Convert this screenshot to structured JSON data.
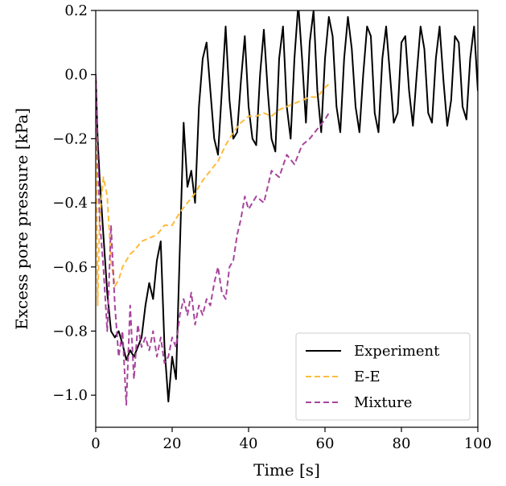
{
  "chart_data": {
    "type": "line",
    "title": "",
    "xlabel": "Time [s]",
    "ylabel": "Excess pore pressure [kPa]",
    "xlim": [
      0,
      100
    ],
    "ylim": [
      -1.1,
      0.2
    ],
    "xticks": [
      0,
      20,
      40,
      60,
      80,
      100
    ],
    "xtick_labels": [
      "0",
      "20",
      "40",
      "60",
      "80",
      "100"
    ],
    "yticks": [
      0.2,
      0.0,
      -0.2,
      -0.4,
      -0.6,
      -0.8,
      -1.0
    ],
    "ytick_labels": [
      "0.2",
      "0.0",
      "−0.2",
      "−0.4",
      "−0.6",
      "−0.8",
      "−1.0"
    ],
    "grid": false,
    "legend_position": "lower-right",
    "series": [
      {
        "name": "Experiment",
        "color": "#000000",
        "style": "solid",
        "x": [
          0,
          0.5,
          1,
          2,
          3,
          4,
          5,
          6,
          7,
          8,
          9,
          10,
          11,
          12,
          13,
          14,
          15,
          16,
          17,
          18,
          19,
          20,
          21,
          22,
          23,
          24,
          25,
          26,
          27,
          28,
          29,
          30,
          31,
          32,
          33,
          34,
          35,
          36,
          37,
          38,
          39,
          40,
          41,
          42,
          43,
          44,
          45,
          46,
          47,
          48,
          49,
          50,
          51,
          52,
          53,
          54,
          55,
          56,
          57,
          58,
          59,
          60,
          61,
          62,
          63,
          64,
          65,
          66,
          67,
          68,
          69,
          70,
          71,
          72,
          73,
          74,
          75,
          76,
          77,
          78,
          79,
          80,
          81,
          82,
          83,
          84,
          85,
          86,
          87,
          88,
          89,
          90,
          91,
          92,
          93,
          94,
          95,
          96,
          97,
          98,
          99,
          100
        ],
        "y": [
          0.0,
          -0.2,
          -0.32,
          -0.5,
          -0.68,
          -0.8,
          -0.82,
          -0.8,
          -0.84,
          -0.89,
          -0.86,
          -0.88,
          -0.85,
          -0.82,
          -0.72,
          -0.65,
          -0.7,
          -0.58,
          -0.52,
          -0.85,
          -1.02,
          -0.88,
          -0.95,
          -0.55,
          -0.15,
          -0.35,
          -0.3,
          -0.4,
          -0.1,
          0.05,
          0.1,
          -0.05,
          -0.2,
          -0.25,
          -0.05,
          0.15,
          -0.08,
          -0.2,
          -0.18,
          -0.02,
          0.12,
          -0.1,
          -0.2,
          -0.22,
          0.0,
          0.14,
          -0.05,
          -0.2,
          -0.24,
          0.05,
          0.15,
          -0.1,
          -0.2,
          0.05,
          0.22,
          0.05,
          -0.15,
          0.1,
          0.2,
          -0.05,
          -0.18,
          0.05,
          0.18,
          0.12,
          -0.1,
          -0.18,
          0.05,
          0.18,
          0.08,
          -0.1,
          -0.18,
          0.0,
          0.15,
          0.12,
          -0.12,
          -0.18,
          0.05,
          0.15,
          0.0,
          -0.15,
          -0.12,
          0.1,
          0.12,
          -0.05,
          -0.16,
          0.0,
          0.15,
          0.08,
          -0.12,
          -0.15,
          0.05,
          0.15,
          -0.02,
          -0.16,
          -0.08,
          0.12,
          0.1,
          -0.1,
          -0.14,
          0.05,
          0.15,
          -0.05
        ]
      },
      {
        "name": "E-E",
        "color": "#ffbb3c",
        "style": "dashed",
        "x": [
          0,
          0.5,
          1,
          2,
          3,
          4,
          5,
          6,
          7,
          8,
          9,
          10,
          12,
          14,
          16,
          18,
          20,
          22,
          24,
          26,
          28,
          30,
          32,
          34,
          36,
          38,
          40,
          42,
          44,
          46,
          48,
          50,
          52,
          54,
          56,
          58,
          60,
          61
        ],
        "y": [
          0.0,
          -0.72,
          -0.45,
          -0.32,
          -0.38,
          -0.58,
          -0.66,
          -0.64,
          -0.6,
          -0.58,
          -0.56,
          -0.55,
          -0.52,
          -0.51,
          -0.5,
          -0.47,
          -0.47,
          -0.43,
          -0.4,
          -0.37,
          -0.33,
          -0.3,
          -0.27,
          -0.22,
          -0.18,
          -0.15,
          -0.13,
          -0.13,
          -0.12,
          -0.13,
          -0.11,
          -0.1,
          -0.09,
          -0.08,
          -0.07,
          -0.07,
          -0.04,
          -0.03
        ]
      },
      {
        "name": "Mixture",
        "color": "#a8449e",
        "style": "dashed",
        "x": [
          0,
          0.5,
          1,
          2,
          3,
          4,
          5,
          6,
          7,
          8,
          9,
          10,
          11,
          12,
          13,
          14,
          15,
          16,
          17,
          18,
          19,
          20,
          21,
          22,
          23,
          24,
          25,
          26,
          27,
          28,
          29,
          30,
          31,
          32,
          33,
          34,
          35,
          36,
          37,
          38,
          39,
          40,
          42,
          44,
          46,
          48,
          50,
          52,
          54,
          56,
          58,
          60,
          61
        ],
        "y": [
          0.0,
          -0.25,
          -0.45,
          -0.6,
          -0.8,
          -0.47,
          -0.72,
          -0.88,
          -0.8,
          -1.03,
          -0.72,
          -0.95,
          -0.78,
          -0.85,
          -0.82,
          -0.86,
          -0.8,
          -0.88,
          -0.82,
          -0.9,
          -0.88,
          -0.82,
          -0.85,
          -0.75,
          -0.7,
          -0.75,
          -0.68,
          -0.78,
          -0.72,
          -0.75,
          -0.7,
          -0.72,
          -0.65,
          -0.6,
          -0.68,
          -0.7,
          -0.6,
          -0.58,
          -0.5,
          -0.45,
          -0.38,
          -0.42,
          -0.38,
          -0.4,
          -0.3,
          -0.32,
          -0.25,
          -0.28,
          -0.22,
          -0.2,
          -0.17,
          -0.14,
          -0.12
        ]
      }
    ]
  }
}
